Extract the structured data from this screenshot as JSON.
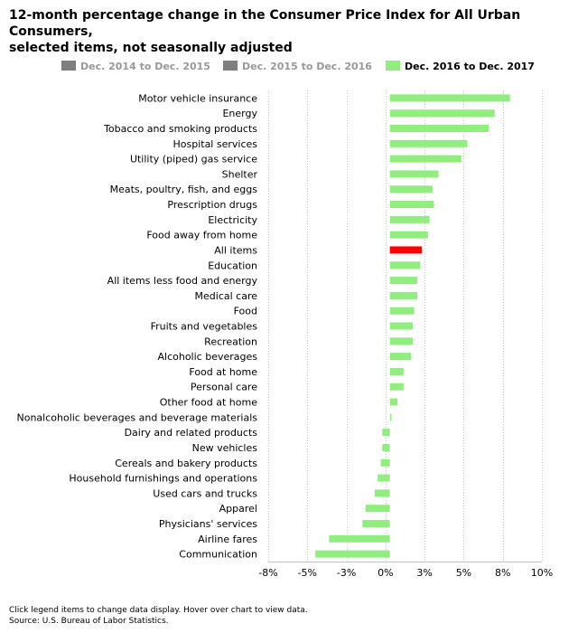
{
  "title_line1": "12-month percentage change in the Consumer Price Index for All Urban Consumers,",
  "title_line2": "selected items, not seasonally adjusted",
  "legend": [
    {
      "label": "Dec. 2014 to Dec. 2015",
      "color": "#7f7f7f",
      "active": false
    },
    {
      "label": "Dec. 2015 to Dec. 2016",
      "color": "#7f7f7f",
      "active": false
    },
    {
      "label": "Dec. 2016 to Dec. 2017",
      "color": "#90ee7e",
      "active": true
    }
  ],
  "footer": {
    "note": "Click legend items to change data display. Hover over chart to view data.",
    "source": "Source: U.S. Bureau of Labor Statistics."
  },
  "chart_data": {
    "type": "bar",
    "orientation": "horizontal",
    "title": "12-month percentage change in the Consumer Price Index for All Urban Consumers, selected items, not seasonally adjusted",
    "xlabel": "",
    "ylabel": "",
    "xlim": [
      -8,
      10
    ],
    "ticks": [
      "-8%",
      "-5%",
      "-3%",
      "0%",
      "3%",
      "5%",
      "8%",
      "10%"
    ],
    "grid": true,
    "legend_position": "top",
    "series_name": "Dec. 2016 to Dec. 2017",
    "bar_color": "#90ee7e",
    "highlight_color": "#ff0000",
    "highlight_category": "All items",
    "categories": [
      "Motor vehicle insurance",
      "Energy",
      "Tobacco and smoking products",
      "Hospital services",
      "Utility (piped) gas service",
      "Shelter",
      "Meats, poultry, fish, and eggs",
      "Prescription drugs",
      "Electricity",
      "Food away from home",
      "All items",
      "Education",
      "All items less food and energy",
      "Medical care",
      "Food",
      "Fruits and vegetables",
      "Recreation",
      "Alcoholic beverages",
      "Food at home",
      "Personal care",
      "Other food at home",
      "Nonalcoholic beverages and beverage materials",
      "Dairy and related products",
      "New vehicles",
      "Cereals and bakery products",
      "Household furnishings and operations",
      "Used cars and trucks",
      "Apparel",
      "Physicians' services",
      "Airline fares",
      "Communication"
    ],
    "values": [
      7.9,
      6.9,
      6.5,
      5.1,
      4.7,
      3.2,
      2.8,
      2.9,
      2.6,
      2.5,
      2.1,
      2.0,
      1.8,
      1.8,
      1.6,
      1.5,
      1.5,
      1.4,
      0.9,
      0.9,
      0.5,
      0.1,
      -0.5,
      -0.5,
      -0.6,
      -0.8,
      -1.0,
      -1.6,
      -1.8,
      -4.0,
      -4.9
    ]
  }
}
